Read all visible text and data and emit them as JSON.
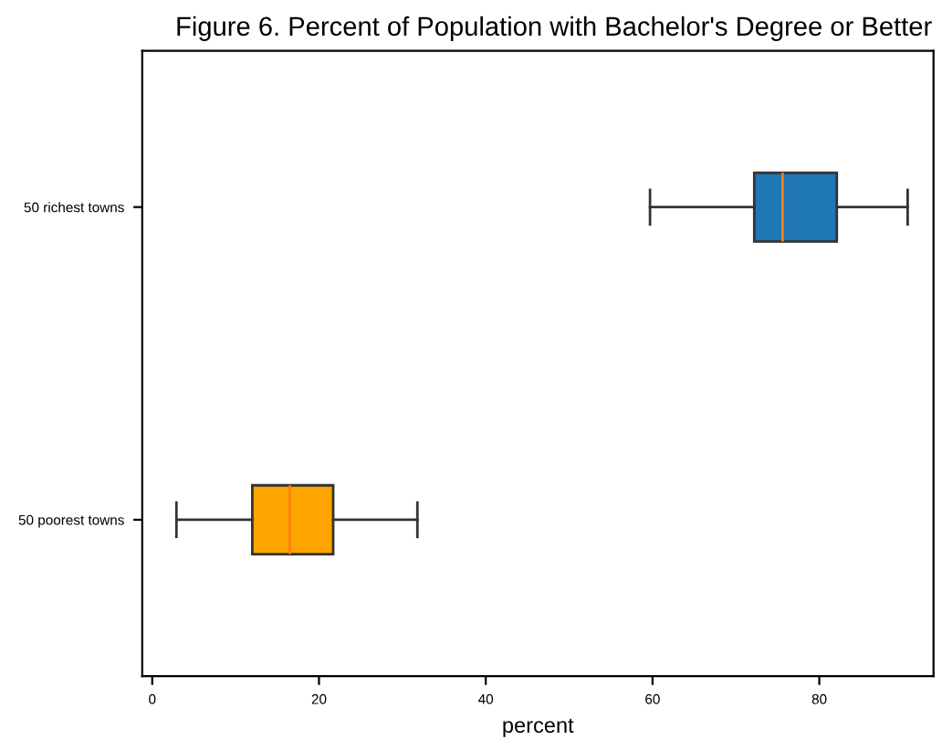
{
  "chart_data": {
    "type": "box",
    "orientation": "horizontal",
    "title": "Figure 6. Percent of Population with Bachelor's Degree or Better",
    "xlabel": "percent",
    "categories": [
      "50 richest towns",
      "50 poorest towns"
    ],
    "boxes": [
      {
        "low": 59.7,
        "q1": 72.2,
        "median": 75.6,
        "q3": 82.1,
        "high": 90.6
      },
      {
        "low": 2.9,
        "q1": 12.0,
        "median": 16.5,
        "q3": 21.7,
        "high": 31.8
      }
    ],
    "colors": [
      "#1f77b4",
      "#ffa500"
    ],
    "xlim": [
      -1.2,
      93.7
    ],
    "xticks": [
      0,
      20,
      40,
      60,
      80
    ],
    "grid": false
  }
}
